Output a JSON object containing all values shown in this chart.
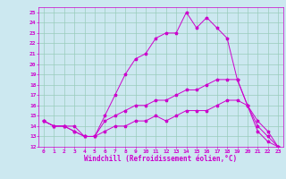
{
  "xlabel": "Windchill (Refroidissement éolien,°C)",
  "bg_color": "#cce8f0",
  "line_color": "#cc00cc",
  "grid_color": "#99ccbb",
  "xlim": [
    -0.5,
    23.5
  ],
  "ylim": [
    12,
    25.5
  ],
  "xticks": [
    0,
    1,
    2,
    3,
    4,
    5,
    6,
    7,
    8,
    9,
    10,
    11,
    12,
    13,
    14,
    15,
    16,
    17,
    18,
    19,
    20,
    21,
    22,
    23
  ],
  "yticks": [
    12,
    13,
    14,
    15,
    16,
    17,
    18,
    19,
    20,
    21,
    22,
    23,
    24,
    25
  ],
  "line1_x": [
    0,
    1,
    2,
    3,
    4,
    5,
    6,
    7,
    8,
    9,
    10,
    11,
    12,
    13,
    14,
    15,
    16,
    17,
    18,
    19,
    20,
    21,
    22,
    23
  ],
  "line1_y": [
    14.5,
    14.0,
    14.0,
    14.0,
    13.0,
    13.0,
    15.0,
    17.0,
    19.0,
    20.5,
    21.0,
    22.5,
    23.0,
    23.0,
    25.0,
    23.5,
    24.5,
    23.5,
    22.5,
    18.5,
    16.0,
    14.5,
    13.5,
    12.0
  ],
  "line2_x": [
    0,
    1,
    2,
    3,
    4,
    5,
    6,
    7,
    8,
    9,
    10,
    11,
    12,
    13,
    14,
    15,
    16,
    17,
    18,
    19,
    20,
    21,
    22,
    23
  ],
  "line2_y": [
    14.5,
    14.0,
    14.0,
    13.5,
    13.0,
    13.0,
    14.5,
    15.0,
    15.5,
    16.0,
    16.0,
    16.5,
    16.5,
    17.0,
    17.5,
    17.5,
    18.0,
    18.5,
    18.5,
    18.5,
    16.0,
    14.0,
    13.0,
    12.0
  ],
  "line3_x": [
    0,
    1,
    2,
    3,
    4,
    5,
    6,
    7,
    8,
    9,
    10,
    11,
    12,
    13,
    14,
    15,
    16,
    17,
    18,
    19,
    20,
    21,
    22,
    23
  ],
  "line3_y": [
    14.5,
    14.0,
    14.0,
    13.5,
    13.0,
    13.0,
    13.5,
    14.0,
    14.0,
    14.5,
    14.5,
    15.0,
    14.5,
    15.0,
    15.5,
    15.5,
    15.5,
    16.0,
    16.5,
    16.5,
    16.0,
    13.5,
    12.5,
    12.0
  ],
  "xlabel_fontsize": 5.5,
  "tick_fontsize": 4.5
}
